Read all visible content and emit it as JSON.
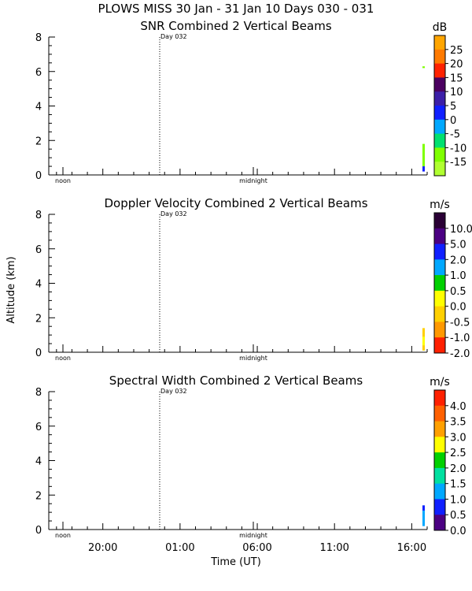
{
  "title": "PLOWS MISS  30 Jan - 31 Jan 10 Days 030 - 031",
  "xlabel": "Time (UT)",
  "ylabel": "Altitude (km)",
  "x_ticks": [
    "20:00",
    "01:00",
    "06:00",
    "11:00",
    "16:00"
  ],
  "y_ticks": [
    "0",
    "2",
    "4",
    "6",
    "8"
  ],
  "markers": {
    "noon": "noon",
    "midnight": "midnight",
    "day": "Day 032"
  },
  "chart_data": [
    {
      "type": "heatmap",
      "title": "SNR Combined 2 Vertical Beams",
      "ylim": [
        0,
        8
      ],
      "colorbar": {
        "unit": "dB",
        "labels": [
          "25",
          "20",
          "15",
          "10",
          "5",
          "0",
          "-5",
          "-10",
          "-15"
        ],
        "colors": [
          "#ffa500",
          "#ff7a00",
          "#ff2200",
          "#4b0060",
          "#3c1fa8",
          "#1020ff",
          "#00a8ff",
          "#00e070",
          "#7fff00",
          "#b0ff30"
        ]
      },
      "blobs": [
        {
          "x": 16.5,
          "y0": 0.3,
          "y1": 1.8,
          "color": "#7fff00"
        },
        {
          "x": 16.5,
          "y0": 0.2,
          "y1": 0.5,
          "color": "#1020ff"
        },
        {
          "x": 16.5,
          "y0": 6.2,
          "y1": 6.3,
          "color": "#7fff00"
        }
      ]
    },
    {
      "type": "heatmap",
      "title": "Doppler Velocity Combined 2 Vertical Beams",
      "ylim": [
        0,
        8
      ],
      "colorbar": {
        "unit": "m/s",
        "labels": [
          "10.0",
          "5.0",
          "2.0",
          "1.0",
          "0.5",
          "0.0",
          "-0.5",
          "-1.0",
          "-2.0"
        ],
        "colors": [
          "#2a0035",
          "#4b0082",
          "#1020ff",
          "#00a8ff",
          "#00d000",
          "#ffff00",
          "#ffd000",
          "#ff9900",
          "#ff2000"
        ]
      },
      "blobs": [
        {
          "x": 16.5,
          "y0": 0.1,
          "y1": 1.4,
          "color": "#ffd000"
        },
        {
          "x": 16.5,
          "y0": 0.4,
          "y1": 0.9,
          "color": "#ffff00"
        }
      ]
    },
    {
      "type": "heatmap",
      "title": "Spectral Width Combined 2 Vertical Beams",
      "ylim": [
        0,
        8
      ],
      "colorbar": {
        "unit": "m/s",
        "labels": [
          "4.0",
          "3.5",
          "3.0",
          "2.5",
          "2.0",
          "1.5",
          "1.0",
          "0.5",
          "0.0"
        ],
        "colors": [
          "#ff2000",
          "#ff6000",
          "#ffa000",
          "#ffff00",
          "#00d000",
          "#00e0a0",
          "#00a8ff",
          "#1020ff",
          "#4b0082"
        ]
      },
      "blobs": [
        {
          "x": 16.5,
          "y0": 0.2,
          "y1": 1.4,
          "color": "#00a8ff"
        },
        {
          "x": 16.5,
          "y0": 1.1,
          "y1": 1.4,
          "color": "#1020ff"
        }
      ]
    }
  ]
}
